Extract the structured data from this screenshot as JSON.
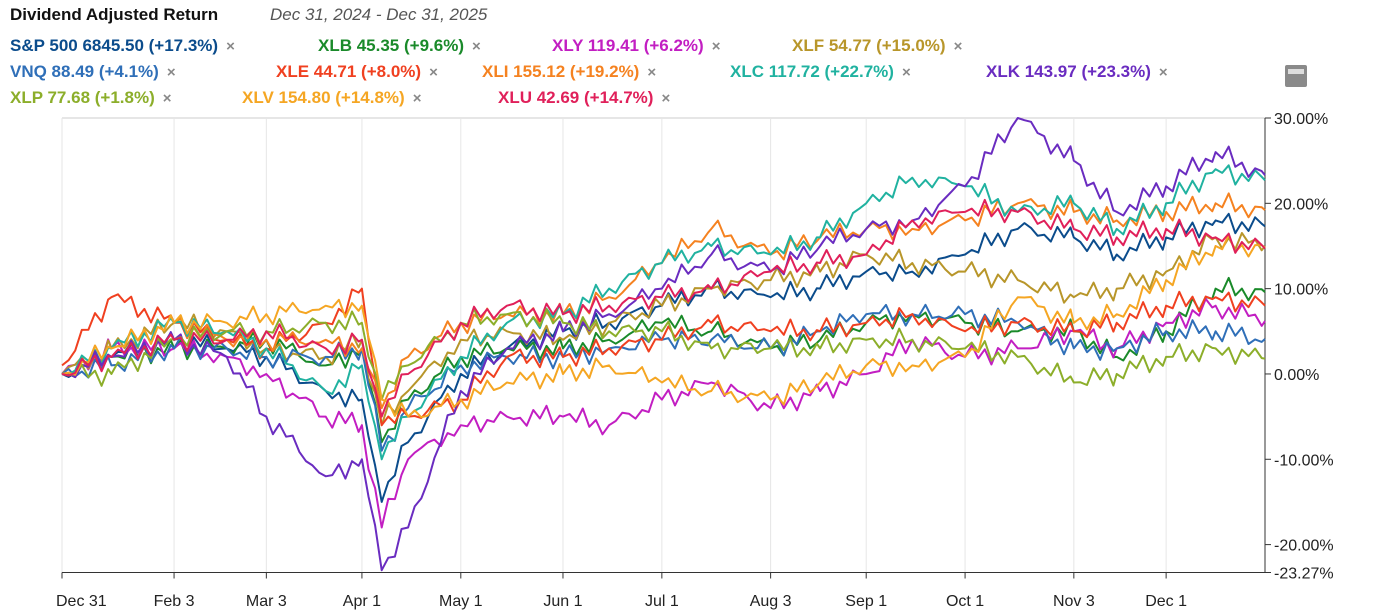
{
  "chart_data": {
    "type": "line",
    "title": "Dividend Adjusted Return",
    "subtitle": "Dec 31, 2024 - Dec 31, 2025",
    "xlabel": "",
    "ylabel": "",
    "ylim": [
      -23.27,
      30
    ],
    "y_ticks": [
      30,
      20,
      10,
      0,
      -10,
      -20,
      -23.27
    ],
    "y_tick_labels": [
      "30.00%",
      "20.00%",
      "10.00%",
      "0.00%",
      "-10.00%",
      "-20.00%",
      "-23.27%"
    ],
    "x_days": [
      0,
      15,
      34,
      50,
      62,
      80,
      91,
      97,
      105,
      121,
      135,
      152,
      166,
      182,
      197,
      215,
      230,
      244,
      258,
      274,
      290,
      307,
      320,
      335,
      350,
      365
    ],
    "x_ticks": [
      {
        "day": 0,
        "label": "Dec 31"
      },
      {
        "day": 34,
        "label": "Feb 3"
      },
      {
        "day": 62,
        "label": "Mar 3"
      },
      {
        "day": 91,
        "label": "Apr 1"
      },
      {
        "day": 121,
        "label": "May 1"
      },
      {
        "day": 152,
        "label": "Jun 1"
      },
      {
        "day": 182,
        "label": "Jul 1"
      },
      {
        "day": 215,
        "label": "Aug 3"
      },
      {
        "day": 244,
        "label": "Sep 1"
      },
      {
        "day": 274,
        "label": "Oct 1"
      },
      {
        "day": 307,
        "label": "Nov 3"
      },
      {
        "day": 335,
        "label": "Dec 1"
      }
    ],
    "series": [
      {
        "name": "S&P 500",
        "legend": "S&P 500 6845.50 (+17.3%)",
        "color": "#0b4c8c",
        "values": [
          0,
          2,
          4,
          3,
          2,
          -2,
          -3,
          -15,
          -8,
          0,
          3,
          5,
          6,
          8,
          10,
          9,
          10,
          12,
          12,
          14,
          17,
          16,
          14,
          16,
          18,
          17.3
        ]
      },
      {
        "name": "XLB",
        "legend": "XLB 45.35 (+9.6%)",
        "color": "#1a8a2a",
        "values": [
          0,
          2,
          3,
          3,
          4,
          1,
          3,
          -8,
          -3,
          2,
          3,
          3,
          4,
          6,
          5,
          3,
          4,
          6,
          7,
          6,
          5,
          5,
          2,
          5,
          10,
          9.6
        ]
      },
      {
        "name": "XLY",
        "legend": "XLY 119.41 (+6.2%)",
        "color": "#c21ec2",
        "values": [
          0,
          3,
          3,
          2,
          0,
          -5,
          -6,
          -18,
          -10,
          -6,
          -5,
          -5,
          -6,
          -3,
          -1,
          -4,
          -2,
          0,
          4,
          2,
          3,
          5,
          3,
          6,
          8,
          6.2
        ]
      },
      {
        "name": "XLF",
        "legend": "XLF 54.77 (+15.0%)",
        "color": "#b8962a",
        "values": [
          0,
          3,
          6,
          5,
          3,
          2,
          4,
          -6,
          -2,
          4,
          5,
          4,
          6,
          8,
          10,
          11,
          12,
          14,
          13,
          12,
          11,
          9,
          10,
          12,
          16,
          15
        ]
      },
      {
        "name": "VNQ",
        "legend": "VNQ 88.49 (+4.1%)",
        "color": "#2f6fb8",
        "values": [
          0,
          1,
          3,
          3,
          2,
          2,
          3,
          -9,
          -4,
          1,
          2,
          2,
          3,
          4,
          4,
          3,
          5,
          7,
          7,
          7,
          6,
          3,
          3,
          5,
          5,
          4.1
        ]
      },
      {
        "name": "XLE",
        "legend": "XLE 44.71 (+8.0%)",
        "color": "#f04020",
        "values": [
          1,
          9,
          6,
          4,
          3,
          6,
          10,
          -6,
          -5,
          -3,
          2,
          2,
          3,
          4,
          6,
          5,
          5,
          6,
          7,
          5,
          6,
          5,
          6,
          8,
          9,
          8
        ]
      },
      {
        "name": "XLI",
        "legend": "XLI 155.12 (+19.2%)",
        "color": "#f58220",
        "values": [
          0,
          3,
          6,
          4,
          4,
          4,
          3,
          -4,
          2,
          6,
          7,
          7,
          9,
          13,
          17,
          14,
          16,
          17,
          17,
          18,
          20,
          19,
          18,
          19,
          20,
          19.2
        ]
      },
      {
        "name": "XLC",
        "legend": "XLC 117.72 (+22.7%)",
        "color": "#20b2a0",
        "values": [
          0,
          3,
          6,
          5,
          3,
          -2,
          1,
          -10,
          -5,
          2,
          6,
          7,
          10,
          13,
          15,
          14,
          16,
          20,
          23,
          22,
          19,
          20,
          17,
          20,
          24,
          22.7
        ]
      },
      {
        "name": "XLK",
        "legend": "XLK 143.97 (+23.3%)",
        "color": "#6a2cc0",
        "values": [
          0,
          2,
          4,
          2,
          -5,
          -12,
          -10,
          -23,
          -18,
          -2,
          3,
          5,
          7,
          10,
          14,
          12,
          15,
          17,
          18,
          22,
          30,
          25,
          19,
          22,
          26,
          23.3
        ]
      },
      {
        "name": "XLP",
        "legend": "XLP 77.68 (+1.8%)",
        "color": "#8cae2a",
        "values": [
          0,
          0,
          4,
          5,
          5,
          6,
          6,
          -3,
          1,
          6,
          7,
          6,
          5,
          5,
          3,
          3,
          3,
          4,
          4,
          3,
          2,
          -1,
          0,
          2,
          3,
          1.8
        ]
      },
      {
        "name": "XLV",
        "legend": "XLV 154.80 (+14.8%)",
        "color": "#f5a623",
        "values": [
          0,
          3,
          6,
          6,
          7,
          8,
          8,
          -3,
          -5,
          -3,
          -1,
          0,
          1,
          -1,
          -2,
          -3,
          -1,
          1,
          1,
          2,
          9,
          6,
          7,
          11,
          15,
          14.8
        ]
      },
      {
        "name": "XLU",
        "legend": "XLU 42.69 (+14.7%)",
        "color": "#e0205a",
        "values": [
          0,
          2,
          4,
          4,
          5,
          3,
          4,
          -5,
          0,
          6,
          8,
          7,
          8,
          9,
          10,
          12,
          13,
          14,
          18,
          19,
          19,
          17,
          16,
          17,
          16,
          14.7
        ]
      }
    ],
    "legend_remove_symbol": "×"
  }
}
